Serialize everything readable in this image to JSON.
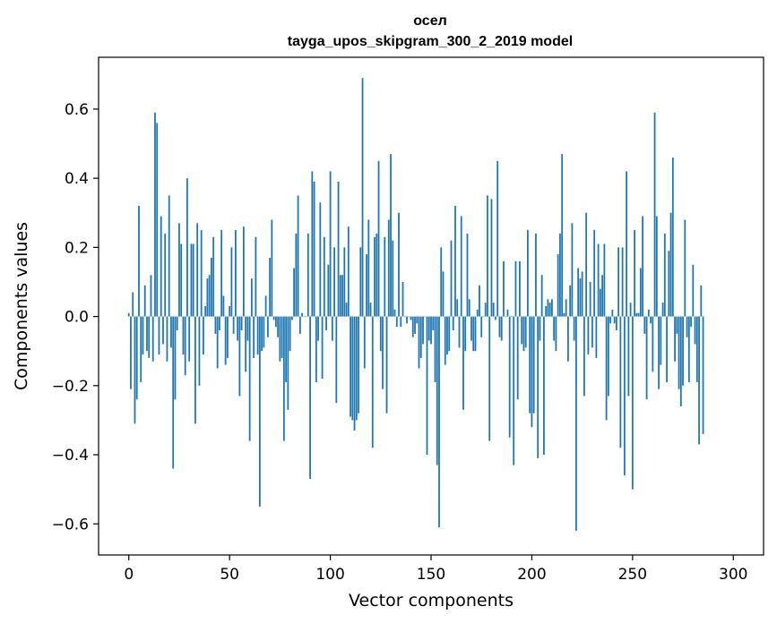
{
  "chart_data": {
    "type": "bar",
    "title": "осел",
    "subtitle": "tayga_upos_skipgram_300_2_2019 model",
    "xlabel": "Vector components",
    "ylabel": "Components values",
    "xlim": [
      -15,
      315
    ],
    "ylim": [
      -0.69,
      0.75
    ],
    "xticks": [
      0,
      50,
      100,
      150,
      200,
      250,
      300
    ],
    "xtick_labels": [
      "0",
      "50",
      "100",
      "150",
      "200",
      "250",
      "300"
    ],
    "yticks": [
      -0.6,
      -0.4,
      -0.2,
      0.0,
      0.2,
      0.4,
      0.6
    ],
    "ytick_labels": [
      "−0.6",
      "−0.4",
      "−0.2",
      "0.0",
      "0.2",
      "0.4",
      "0.6"
    ],
    "bar_color": "#1f77b4",
    "values": [
      0.01,
      -0.21,
      0.07,
      -0.31,
      -0.24,
      0.32,
      -0.19,
      -0.11,
      0.09,
      -0.1,
      -0.12,
      0.12,
      -0.13,
      0.59,
      0.56,
      -0.11,
      0.29,
      -0.08,
      0.24,
      -0.13,
      0.35,
      -0.09,
      -0.44,
      -0.24,
      -0.04,
      0.27,
      0.21,
      -0.11,
      -0.17,
      0.4,
      -0.13,
      0.21,
      0.21,
      -0.31,
      0.27,
      -0.2,
      0.25,
      -0.11,
      0.03,
      0.11,
      0.12,
      0.17,
      0.23,
      -0.05,
      -0.15,
      -0.04,
      0.25,
      0.06,
      -0.14,
      -0.12,
      0.03,
      0.2,
      -0.05,
      0.25,
      -0.07,
      -0.23,
      -0.04,
      0.26,
      -0.16,
      -0.07,
      -0.36,
      0.11,
      -0.12,
      0.23,
      -0.11,
      -0.55,
      -0.1,
      -0.09,
      0.06,
      -0.06,
      0.17,
      0.28,
      -0.01,
      -0.03,
      -0.06,
      -0.13,
      -0.12,
      -0.36,
      -0.19,
      -0.27,
      -0.1,
      -0.01,
      0.14,
      0.24,
      0.35,
      -0.05,
      0.01,
      0.0,
      0.0,
      0.24,
      -0.47,
      0.42,
      0.39,
      -0.19,
      -0.07,
      0.33,
      -0.18,
      0.23,
      -0.04,
      0.15,
      0.42,
      -0.07,
      0.2,
      -0.25,
      0.39,
      0.12,
      0.12,
      0.2,
      0.04,
      0.26,
      -0.29,
      -0.3,
      -0.33,
      -0.3,
      -0.28,
      0.2,
      0.69,
      -0.15,
      0.18,
      0.28,
      0.04,
      -0.38,
      0.23,
      0.24,
      0.45,
      -0.1,
      -0.21,
      0.23,
      -0.28,
      0.28,
      0.47,
      0.22,
      0.02,
      -0.03,
      0.3,
      -0.03,
      0.1,
      0.0,
      -0.02,
      0.0,
      -0.01,
      -0.06,
      -0.05,
      -0.02,
      -0.15,
      -0.12,
      -0.08,
      0.0,
      -0.4,
      -0.07,
      -0.08,
      -0.04,
      -0.19,
      -0.43,
      -0.61,
      0.2,
      0.13,
      -0.14,
      -0.11,
      -0.1,
      0.22,
      -0.04,
      0.32,
      0.05,
      -0.09,
      0.29,
      -0.27,
      -0.1,
      0.24,
      0.05,
      -0.07,
      -0.1,
      -0.1,
      0.02,
      0.09,
      -0.06,
      0.0,
      0.04,
      0.35,
      -0.36,
      0.34,
      0.04,
      -0.01,
      0.45,
      -0.06,
      -0.07,
      0.16,
      0.0,
      0.02,
      -0.35,
      0.0,
      -0.43,
      0.16,
      -0.24,
      0.16,
      -0.08,
      -0.1,
      -0.09,
      0.25,
      -0.28,
      -0.32,
      -0.28,
      0.24,
      -0.41,
      -0.07,
      0.12,
      -0.4,
      0.03,
      0.05,
      0.04,
      0.05,
      -0.07,
      -0.1,
      0.18,
      0.24,
      0.47,
      0.01,
      0.05,
      -0.13,
      0.09,
      0.27,
      -0.07,
      -0.62,
      0.14,
      0.11,
      0.13,
      -0.23,
      0.3,
      -0.11,
      0.1,
      -0.09,
      0.25,
      -0.12,
      0.21,
      0.08,
      0.12,
      0.21,
      -0.3,
      -0.23,
      -0.02,
      0.02,
      -0.02,
      -0.04,
      0.2,
      -0.38,
      0.2,
      -0.46,
      0.42,
      -0.23,
      0.04,
      -0.5,
      0.25,
      0.01,
      0.01,
      0.14,
      0.29,
      -0.05,
      -0.24,
      0.02,
      -0.02,
      -0.16,
      0.59,
      0.29,
      -0.21,
      -0.14,
      0.04,
      0.24,
      -0.19,
      0.19,
      0.3,
      0.46,
      -0.13,
      -0.05,
      -0.21,
      -0.26,
      -0.2,
      0.28,
      -0.06,
      -0.19,
      -0.03,
      0.15,
      -0.08,
      -0.19,
      -0.37,
      0.09,
      -0.34
    ]
  }
}
